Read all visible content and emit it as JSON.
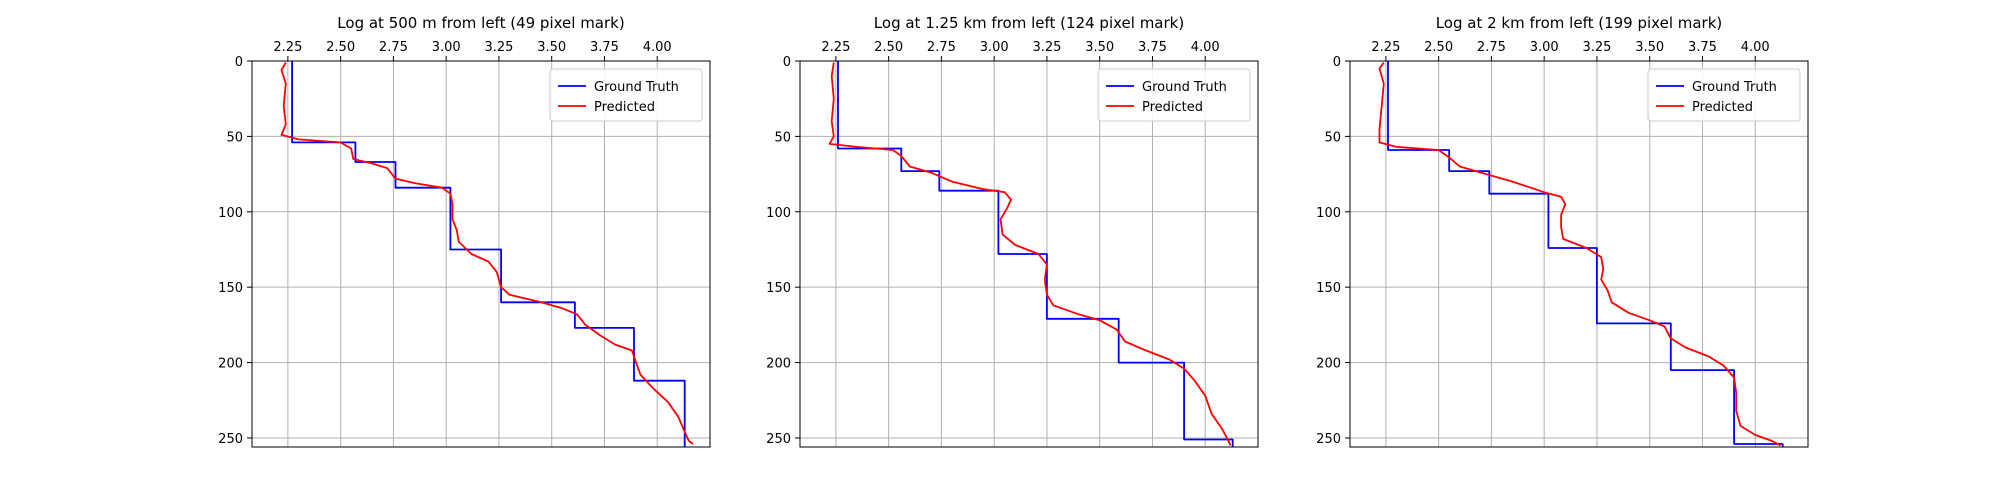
{
  "chart_data": [
    {
      "type": "line",
      "title": "Log at 500 m from left (49 pixel mark)",
      "xlim": [
        2.08,
        4.25
      ],
      "ylim": [
        256,
        0
      ],
      "x_ticks": [
        2.25,
        2.5,
        2.75,
        3.0,
        3.25,
        3.5,
        3.75,
        4.0
      ],
      "x_tick_labels": [
        "2.25",
        "2.50",
        "2.75",
        "3.00",
        "3.25",
        "3.50",
        "3.75",
        "4.00"
      ],
      "y_ticks": [
        0,
        50,
        100,
        150,
        200,
        250
      ],
      "y_tick_labels": [
        "0",
        "50",
        "100",
        "150",
        "200",
        "250"
      ],
      "grid": true,
      "legend_position": "top-right",
      "series": [
        {
          "name": "Ground Truth",
          "color": "#0000ff",
          "points": [
            [
              2.27,
              0
            ],
            [
              2.27,
              54
            ],
            [
              2.57,
              54
            ],
            [
              2.57,
              67
            ],
            [
              2.76,
              67
            ],
            [
              2.76,
              84
            ],
            [
              3.02,
              84
            ],
            [
              3.02,
              125
            ],
            [
              3.26,
              125
            ],
            [
              3.26,
              160
            ],
            [
              3.61,
              160
            ],
            [
              3.61,
              177
            ],
            [
              3.89,
              177
            ],
            [
              3.89,
              212
            ],
            [
              4.13,
              212
            ],
            [
              4.13,
              256
            ]
          ]
        },
        {
          "name": "Predicted",
          "color": "#ff0000",
          "points": [
            [
              2.24,
              1
            ],
            [
              2.22,
              6
            ],
            [
              2.24,
              15
            ],
            [
              2.23,
              30
            ],
            [
              2.24,
              42
            ],
            [
              2.22,
              49
            ],
            [
              2.3,
              52
            ],
            [
              2.5,
              54
            ],
            [
              2.55,
              58
            ],
            [
              2.56,
              65
            ],
            [
              2.65,
              68
            ],
            [
              2.72,
              71
            ],
            [
              2.76,
              78
            ],
            [
              2.85,
              81
            ],
            [
              2.98,
              84
            ],
            [
              3.02,
              88
            ],
            [
              3.03,
              95
            ],
            [
              3.03,
              105
            ],
            [
              3.05,
              112
            ],
            [
              3.06,
              120
            ],
            [
              3.12,
              128
            ],
            [
              3.2,
              133
            ],
            [
              3.24,
              140
            ],
            [
              3.26,
              150
            ],
            [
              3.3,
              155
            ],
            [
              3.45,
              160
            ],
            [
              3.55,
              164
            ],
            [
              3.62,
              168
            ],
            [
              3.66,
              175
            ],
            [
              3.73,
              182
            ],
            [
              3.8,
              188
            ],
            [
              3.88,
              192
            ],
            [
              3.9,
              200
            ],
            [
              3.92,
              208
            ],
            [
              3.98,
              217
            ],
            [
              4.05,
              226
            ],
            [
              4.1,
              236
            ],
            [
              4.13,
              246
            ],
            [
              4.15,
              252
            ],
            [
              4.17,
              254
            ]
          ]
        }
      ]
    },
    {
      "type": "line",
      "title": "Log at 1.25 km from left (124 pixel mark)",
      "xlim": [
        2.08,
        4.25
      ],
      "ylim": [
        256,
        0
      ],
      "x_ticks": [
        2.25,
        2.5,
        2.75,
        3.0,
        3.25,
        3.5,
        3.75,
        4.0
      ],
      "x_tick_labels": [
        "2.25",
        "2.50",
        "2.75",
        "3.00",
        "3.25",
        "3.50",
        "3.75",
        "4.00"
      ],
      "y_ticks": [
        0,
        50,
        100,
        150,
        200,
        250
      ],
      "y_tick_labels": [
        "0",
        "50",
        "100",
        "150",
        "200",
        "250"
      ],
      "grid": true,
      "legend_position": "top-right",
      "series": [
        {
          "name": "Ground Truth",
          "color": "#0000ff",
          "points": [
            [
              2.26,
              0
            ],
            [
              2.26,
              58
            ],
            [
              2.56,
              58
            ],
            [
              2.56,
              73
            ],
            [
              2.74,
              73
            ],
            [
              2.74,
              86
            ],
            [
              3.02,
              86
            ],
            [
              3.02,
              128
            ],
            [
              3.25,
              128
            ],
            [
              3.25,
              171
            ],
            [
              3.59,
              171
            ],
            [
              3.59,
              200
            ],
            [
              3.9,
              200
            ],
            [
              3.9,
              251
            ],
            [
              4.13,
              251
            ],
            [
              4.13,
              256
            ]
          ]
        },
        {
          "name": "Predicted",
          "color": "#ff0000",
          "points": [
            [
              2.24,
              1
            ],
            [
              2.23,
              10
            ],
            [
              2.24,
              25
            ],
            [
              2.23,
              40
            ],
            [
              2.24,
              50
            ],
            [
              2.22,
              55
            ],
            [
              2.35,
              57
            ],
            [
              2.52,
              59
            ],
            [
              2.56,
              63
            ],
            [
              2.6,
              70
            ],
            [
              2.7,
              74
            ],
            [
              2.8,
              80
            ],
            [
              2.95,
              85
            ],
            [
              3.05,
              87
            ],
            [
              3.08,
              92
            ],
            [
              3.06,
              98
            ],
            [
              3.03,
              105
            ],
            [
              3.04,
              115
            ],
            [
              3.1,
              122
            ],
            [
              3.21,
              128
            ],
            [
              3.25,
              135
            ],
            [
              3.24,
              145
            ],
            [
              3.25,
              155
            ],
            [
              3.28,
              162
            ],
            [
              3.4,
              168
            ],
            [
              3.5,
              172
            ],
            [
              3.58,
              178
            ],
            [
              3.62,
              186
            ],
            [
              3.72,
              192
            ],
            [
              3.83,
              198
            ],
            [
              3.9,
              204
            ],
            [
              3.95,
              212
            ],
            [
              4.0,
              222
            ],
            [
              4.03,
              234
            ],
            [
              4.08,
              244
            ],
            [
              4.11,
              252
            ],
            [
              4.12,
              255
            ]
          ]
        }
      ]
    },
    {
      "type": "line",
      "title": "Log at 2 km from left (199 pixel mark)",
      "xlim": [
        2.08,
        4.25
      ],
      "ylim": [
        256,
        0
      ],
      "x_ticks": [
        2.25,
        2.5,
        2.75,
        3.0,
        3.25,
        3.5,
        3.75,
        4.0
      ],
      "x_tick_labels": [
        "2.25",
        "2.50",
        "2.75",
        "3.00",
        "3.25",
        "3.50",
        "3.75",
        "4.00"
      ],
      "y_ticks": [
        0,
        50,
        100,
        150,
        200,
        250
      ],
      "y_tick_labels": [
        "0",
        "50",
        "100",
        "150",
        "200",
        "250"
      ],
      "grid": true,
      "legend_position": "top-right",
      "series": [
        {
          "name": "Ground Truth",
          "color": "#0000ff",
          "points": [
            [
              2.26,
              0
            ],
            [
              2.26,
              59
            ],
            [
              2.55,
              59
            ],
            [
              2.55,
              73
            ],
            [
              2.74,
              73
            ],
            [
              2.74,
              88
            ],
            [
              3.02,
              88
            ],
            [
              3.02,
              124
            ],
            [
              3.25,
              124
            ],
            [
              3.25,
              174
            ],
            [
              3.6,
              174
            ],
            [
              3.6,
              205
            ],
            [
              3.9,
              205
            ],
            [
              3.9,
              254
            ],
            [
              4.13,
              254
            ],
            [
              4.13,
              256
            ]
          ]
        },
        {
          "name": "Predicted",
          "color": "#ff0000",
          "points": [
            [
              2.24,
              1
            ],
            [
              2.22,
              5
            ],
            [
              2.24,
              15
            ],
            [
              2.23,
              30
            ],
            [
              2.22,
              45
            ],
            [
              2.22,
              54
            ],
            [
              2.3,
              57
            ],
            [
              2.5,
              59
            ],
            [
              2.55,
              64
            ],
            [
              2.6,
              70
            ],
            [
              2.7,
              74
            ],
            [
              2.85,
              80
            ],
            [
              3.0,
              87
            ],
            [
              3.08,
              90
            ],
            [
              3.1,
              95
            ],
            [
              3.08,
              102
            ],
            [
              3.08,
              110
            ],
            [
              3.09,
              118
            ],
            [
              3.2,
              124
            ],
            [
              3.27,
              130
            ],
            [
              3.28,
              138
            ],
            [
              3.27,
              145
            ],
            [
              3.3,
              152
            ],
            [
              3.32,
              160
            ],
            [
              3.4,
              167
            ],
            [
              3.5,
              172
            ],
            [
              3.57,
              176
            ],
            [
              3.6,
              184
            ],
            [
              3.67,
              190
            ],
            [
              3.78,
              196
            ],
            [
              3.85,
              202
            ],
            [
              3.9,
              210
            ],
            [
              3.91,
              220
            ],
            [
              3.91,
              232
            ],
            [
              3.93,
              242
            ],
            [
              4.0,
              248
            ],
            [
              4.08,
              252
            ],
            [
              4.12,
              255
            ]
          ]
        }
      ]
    }
  ]
}
